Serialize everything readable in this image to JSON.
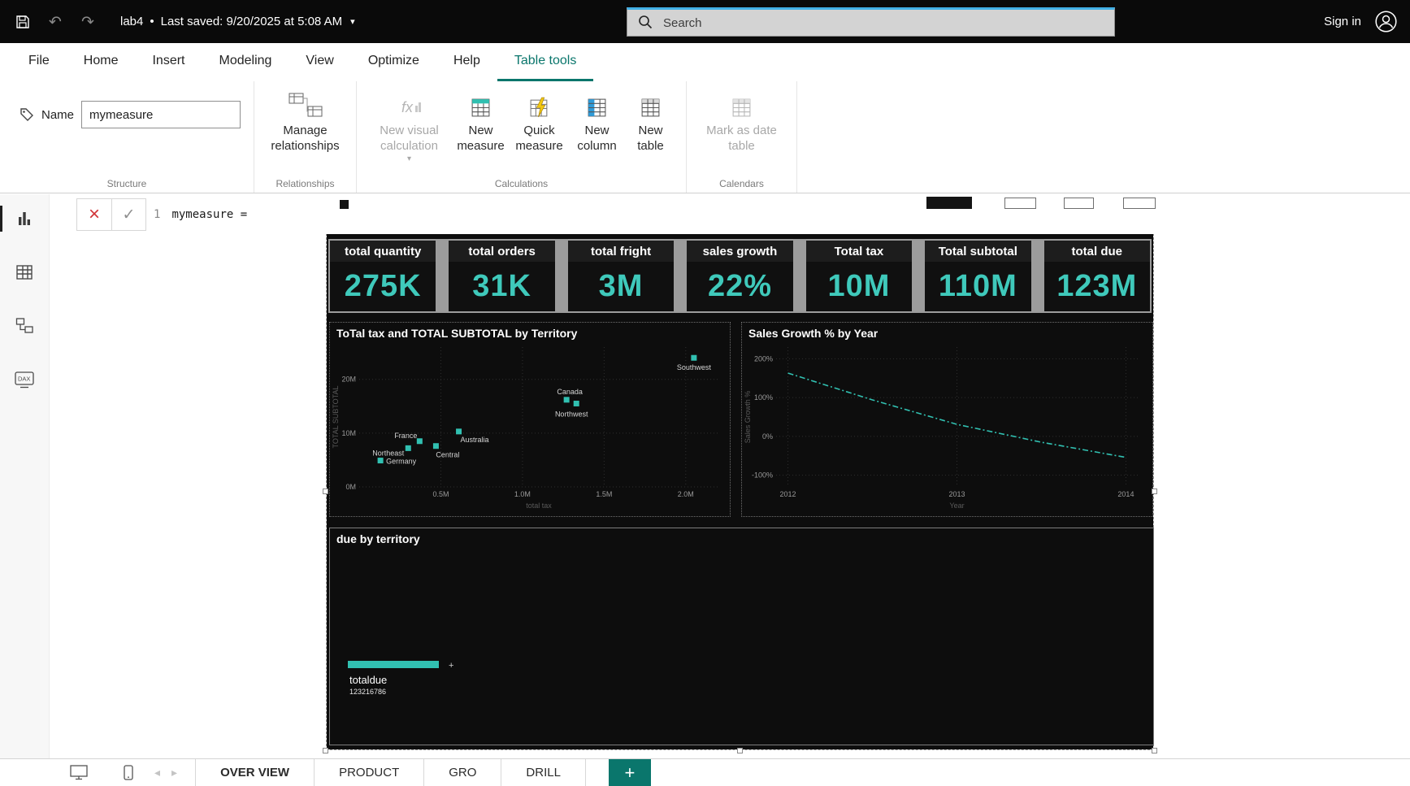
{
  "colors": {
    "accent": "#0a766c",
    "visual_teal": "#31c0b1",
    "kpi_value": "#3fc9bb",
    "search_top": "#41b0e6",
    "cancel_red": "#d13438"
  },
  "titlebar": {
    "file_name": "lab4",
    "separator": "•",
    "saved_text": "Last saved: 9/20/2025 at 5:08 AM",
    "search_placeholder": "Search",
    "sign_in_label": "Sign in"
  },
  "ribbon": {
    "tabs": [
      {
        "label": "File",
        "active": false
      },
      {
        "label": "Home",
        "active": false
      },
      {
        "label": "Insert",
        "active": false
      },
      {
        "label": "Modeling",
        "active": false
      },
      {
        "label": "View",
        "active": false
      },
      {
        "label": "Optimize",
        "active": false
      },
      {
        "label": "Help",
        "active": false
      },
      {
        "label": "Table tools",
        "active": true
      }
    ],
    "name_label": "Name",
    "name_value": "mymeasure",
    "buttons": {
      "manage_relationships": "Manage relationships",
      "new_visual_calculation": "New visual calculation",
      "new_measure": "New measure",
      "quick_measure": "Quick measure",
      "new_column": "New column",
      "new_table": "New table",
      "mark_as_date_table": "Mark as date table"
    },
    "groups": {
      "structure": "Structure",
      "relationships": "Relationships",
      "calculations": "Calculations",
      "calendars": "Calendars"
    }
  },
  "formula_bar": {
    "line_number": "1",
    "expression": "mymeasure ="
  },
  "canvas": {
    "kpis": [
      {
        "label": "total quantity",
        "value": "275K"
      },
      {
        "label": "total orders",
        "value": "31K"
      },
      {
        "label": "total fright",
        "value": "3M"
      },
      {
        "label": "sales growth",
        "value": "22%"
      },
      {
        "label": "Total tax",
        "value": "10M"
      },
      {
        "label": "Total subtotal",
        "value": "110M"
      },
      {
        "label": "total due",
        "value": "123M"
      }
    ]
  },
  "chart_data": [
    {
      "type": "scatter",
      "title": "ToTal tax and TOTAL SUBTOTAL by Territory",
      "xlabel": "total tax",
      "ylabel": "TOTAL SUBTOTAL",
      "xlim": [
        0,
        2.2
      ],
      "ylim": [
        0,
        26
      ],
      "x_ticks": [
        {
          "v": 0.5,
          "label": "0.5M"
        },
        {
          "v": 1.0,
          "label": "1.0M"
        },
        {
          "v": 1.5,
          "label": "1.5M"
        },
        {
          "v": 2.0,
          "label": "2.0M"
        }
      ],
      "y_ticks": [
        {
          "v": 0,
          "label": "0M"
        },
        {
          "v": 10,
          "label": "10M"
        },
        {
          "v": 20,
          "label": "20M"
        }
      ],
      "points": [
        {
          "territory": "Southwest",
          "x": 2.05,
          "y": 24.0,
          "lx": 0,
          "ly": 15,
          "anchor": "middle"
        },
        {
          "territory": "Canada",
          "x": 1.27,
          "y": 16.2,
          "lx": 4,
          "ly": -7,
          "anchor": "middle"
        },
        {
          "territory": "Northwest",
          "x": 1.33,
          "y": 15.5,
          "lx": -6,
          "ly": 16,
          "anchor": "middle"
        },
        {
          "territory": "Australia",
          "x": 0.61,
          "y": 10.3,
          "lx": 2,
          "ly": 13,
          "anchor": "start"
        },
        {
          "territory": "France",
          "x": 0.37,
          "y": 8.5,
          "lx": -3,
          "ly": -4,
          "anchor": "end"
        },
        {
          "territory": "Central",
          "x": 0.47,
          "y": 7.6,
          "lx": 0,
          "ly": 14,
          "anchor": "start"
        },
        {
          "territory": "Northeast",
          "x": 0.3,
          "y": 7.2,
          "lx": -5,
          "ly": 9,
          "anchor": "end"
        },
        {
          "territory": "Germany",
          "x": 0.13,
          "y": 4.9,
          "lx": 7,
          "ly": 4,
          "anchor": "start"
        }
      ]
    },
    {
      "type": "line",
      "title": "Sales Growth % by Year",
      "xlabel": "Year",
      "ylabel": "Sales Growth %",
      "xlim": [
        2011.93,
        2014.07
      ],
      "ylim": [
        -130,
        230
      ],
      "x_ticks": [
        {
          "v": 2012,
          "label": "2012"
        },
        {
          "v": 2013,
          "label": "2013"
        },
        {
          "v": 2014,
          "label": "2014"
        }
      ],
      "y_ticks": [
        {
          "v": -100,
          "label": "-100%"
        },
        {
          "v": 0,
          "label": "0%"
        },
        {
          "v": 100,
          "label": "100%"
        },
        {
          "v": 200,
          "label": "200%"
        }
      ],
      "points": [
        [
          2012,
          163
        ],
        [
          2012.5,
          94
        ],
        [
          2013,
          31
        ],
        [
          2013.5,
          -15
        ],
        [
          2014,
          -54
        ]
      ]
    },
    {
      "type": "bar",
      "title": "due by territory",
      "categories": [
        "totaldue"
      ],
      "values": [
        123216786
      ],
      "value_labels": [
        "123216786"
      ]
    }
  ],
  "bottom_bar": {
    "pages": [
      {
        "label": "OVER VIEW",
        "active": true
      },
      {
        "label": "PRODUCT",
        "active": false
      },
      {
        "label": "GRO",
        "active": false
      },
      {
        "label": "DRILL",
        "active": false
      }
    ],
    "add_page_label": "+"
  }
}
